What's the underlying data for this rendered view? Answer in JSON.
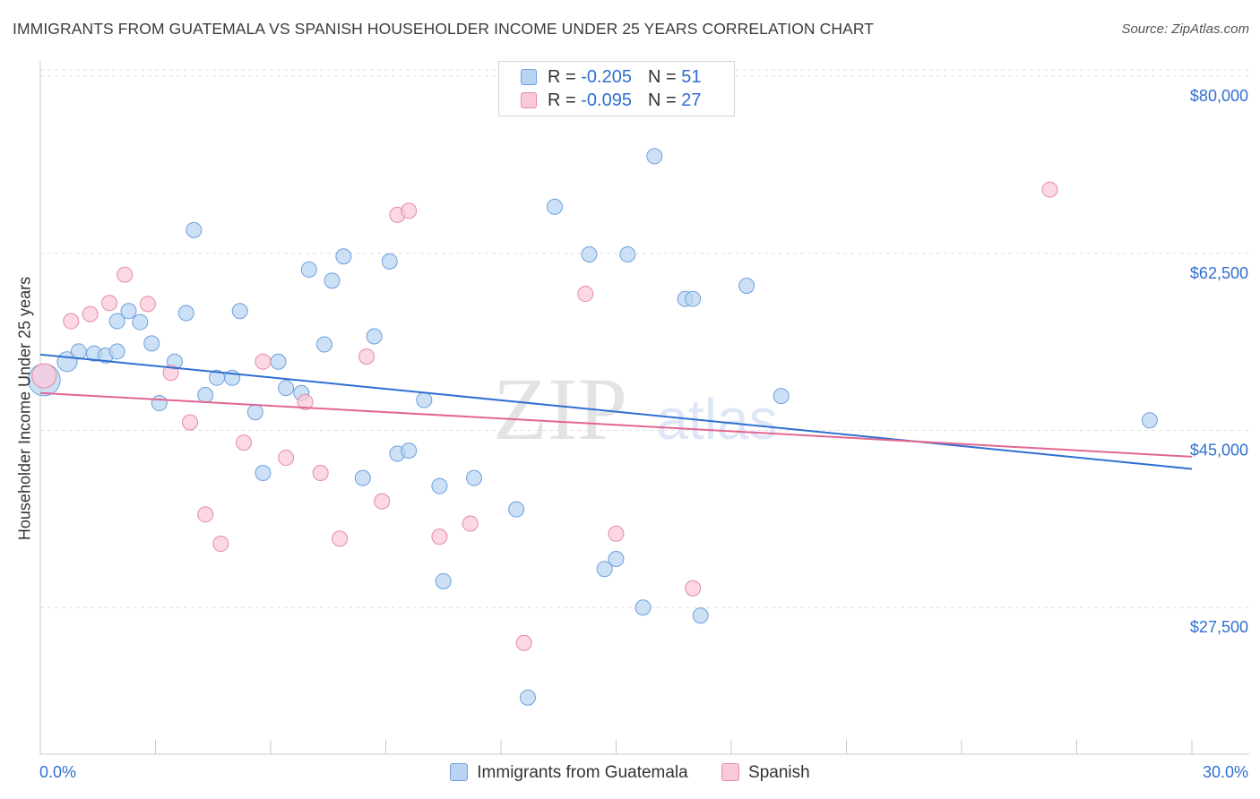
{
  "header": {
    "title": "IMMIGRANTS FROM GUATEMALA VS SPANISH HOUSEHOLDER INCOME UNDER 25 YEARS CORRELATION CHART",
    "source": "Source: ZipAtlas.com"
  },
  "watermark": {
    "zip": "ZIP",
    "atlas": "atlas"
  },
  "colors": {
    "blue_fill": "#b9d4f3",
    "blue_stroke": "#6fa0dc",
    "blue_line": "#2f6fd0",
    "pink_fill": "#f9c9d8",
    "pink_stroke": "#e48aa8",
    "pink_line": "#e2668f",
    "axis_text": "#2f6fd0",
    "grid": "#dddddd"
  },
  "legend_top": [
    {
      "r_label": "R = ",
      "r_value": "-0.205",
      "n_label": "N = ",
      "n_value": "51"
    },
    {
      "r_label": "R = ",
      "r_value": "-0.095",
      "n_label": "N = ",
      "n_value": "27"
    }
  ],
  "legend_bottom": [
    "Immigrants from Guatemala",
    "Spanish"
  ],
  "chart_data": {
    "type": "scatter",
    "title": "IMMIGRANTS FROM GUATEMALA VS SPANISH HOUSEHOLDER INCOME UNDER 25 YEARS CORRELATION CHART",
    "xlabel": "",
    "ylabel": "Householder Income Under 25 years",
    "xlim": [
      0,
      30
    ],
    "ylim": [
      13000,
      84000
    ],
    "x_tick_labels": [
      "0.0%",
      "30.0%"
    ],
    "y_ticks": [
      27500,
      45000,
      62500,
      80000
    ],
    "y_tick_labels": [
      "$27,500",
      "$45,000",
      "$62,500",
      "$80,000"
    ],
    "grid": true,
    "legend_position": "top-center",
    "series": [
      {
        "name": "Immigrants from Guatemala",
        "color": "#6fa0dc",
        "r": -0.205,
        "n": 51,
        "trend": {
          "x": [
            0,
            30
          ],
          "y": [
            52500,
            41200
          ]
        },
        "points": [
          [
            0.1,
            50000,
            2.1
          ],
          [
            0.7,
            51800,
            1.3
          ],
          [
            1.0,
            52800,
            1.0
          ],
          [
            1.4,
            52600,
            1.0
          ],
          [
            1.7,
            52400,
            1.0
          ],
          [
            2.0,
            52800,
            1.0
          ],
          [
            2.0,
            55800,
            1.0
          ],
          [
            2.3,
            56800,
            1.0
          ],
          [
            2.6,
            55700,
            1.0
          ],
          [
            2.9,
            53600,
            1.0
          ],
          [
            3.1,
            47700,
            1.0
          ],
          [
            3.5,
            51800,
            1.0
          ],
          [
            3.8,
            56600,
            1.0
          ],
          [
            4.0,
            64800,
            1.0
          ],
          [
            4.3,
            48500,
            1.0
          ],
          [
            4.6,
            50200,
            1.0
          ],
          [
            5.0,
            50200,
            1.0
          ],
          [
            5.2,
            56800,
            1.0
          ],
          [
            5.6,
            46800,
            1.0
          ],
          [
            5.8,
            40800,
            1.0
          ],
          [
            6.2,
            51800,
            1.0
          ],
          [
            6.4,
            49200,
            1.0
          ],
          [
            6.8,
            48700,
            1.0
          ],
          [
            7.0,
            60900,
            1.0
          ],
          [
            7.4,
            53500,
            1.0
          ],
          [
            7.6,
            59800,
            1.0
          ],
          [
            7.9,
            62200,
            1.0
          ],
          [
            8.4,
            40300,
            1.0
          ],
          [
            8.7,
            54300,
            1.0
          ],
          [
            9.1,
            61700,
            1.0
          ],
          [
            9.3,
            42700,
            1.0
          ],
          [
            9.6,
            43000,
            1.0
          ],
          [
            10.0,
            48000,
            1.0
          ],
          [
            10.4,
            39500,
            1.0
          ],
          [
            10.5,
            30100,
            1.0
          ],
          [
            11.3,
            40300,
            1.0
          ],
          [
            12.4,
            37200,
            1.0
          ],
          [
            12.7,
            18600,
            1.0
          ],
          [
            13.4,
            67100,
            1.0
          ],
          [
            14.3,
            62400,
            1.0
          ],
          [
            14.7,
            31300,
            1.0
          ],
          [
            15.0,
            32300,
            1.0
          ],
          [
            15.3,
            62400,
            1.0
          ],
          [
            15.7,
            27500,
            1.0
          ],
          [
            16.0,
            72100,
            1.0
          ],
          [
            16.8,
            58000,
            1.0
          ],
          [
            17.0,
            58000,
            1.0
          ],
          [
            17.2,
            26700,
            1.0
          ],
          [
            18.4,
            59300,
            1.0
          ],
          [
            19.3,
            48400,
            1.0
          ],
          [
            28.9,
            46000,
            1.0
          ]
        ]
      },
      {
        "name": "Spanish",
        "color": "#e48aa8",
        "r": -0.095,
        "n": 27,
        "trend": {
          "x": [
            0,
            30
          ],
          "y": [
            48700,
            42400
          ]
        },
        "points": [
          [
            0.1,
            50400,
            1.6
          ],
          [
            0.8,
            55800,
            1.0
          ],
          [
            1.3,
            56500,
            1.0
          ],
          [
            1.8,
            57600,
            1.0
          ],
          [
            2.2,
            60400,
            1.0
          ],
          [
            2.8,
            57500,
            1.0
          ],
          [
            3.4,
            50700,
            1.0
          ],
          [
            3.9,
            45800,
            1.0
          ],
          [
            4.3,
            36700,
            1.0
          ],
          [
            4.7,
            33800,
            1.0
          ],
          [
            5.3,
            43800,
            1.0
          ],
          [
            5.8,
            51800,
            1.0
          ],
          [
            6.4,
            42300,
            1.0
          ],
          [
            6.9,
            47800,
            1.0
          ],
          [
            7.3,
            40800,
            1.0
          ],
          [
            7.8,
            34300,
            1.0
          ],
          [
            8.5,
            52300,
            1.0
          ],
          [
            8.9,
            38000,
            1.0
          ],
          [
            9.3,
            66300,
            1.0
          ],
          [
            9.6,
            66700,
            1.0
          ],
          [
            10.4,
            34500,
            1.0
          ],
          [
            11.2,
            35800,
            1.0
          ],
          [
            12.6,
            24000,
            1.0
          ],
          [
            14.2,
            58500,
            1.0
          ],
          [
            15.0,
            34800,
            1.0
          ],
          [
            17.0,
            29400,
            1.0
          ],
          [
            26.3,
            68800,
            1.0
          ]
        ]
      }
    ]
  }
}
